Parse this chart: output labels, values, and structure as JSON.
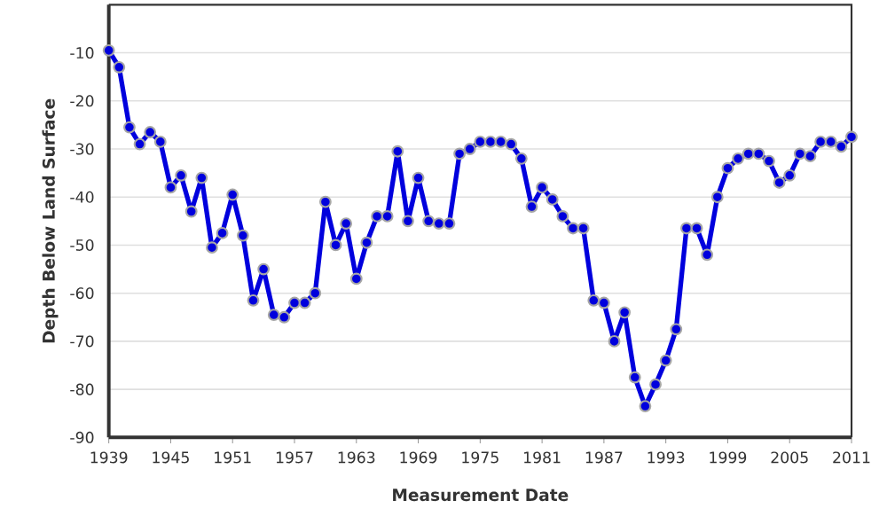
{
  "chart_data": {
    "type": "line",
    "xlabel": "Measurement Date",
    "ylabel": "Depth Below Land Surface",
    "x": [
      1939,
      1940,
      1941,
      1942,
      1943,
      1944,
      1945,
      1946,
      1947,
      1948,
      1949,
      1950,
      1951,
      1952,
      1953,
      1954,
      1955,
      1956,
      1957,
      1958,
      1959,
      1960,
      1961,
      1962,
      1963,
      1964,
      1965,
      1966,
      1967,
      1968,
      1969,
      1970,
      1971,
      1972,
      1973,
      1974,
      1975,
      1976,
      1977,
      1978,
      1979,
      1980,
      1981,
      1982,
      1983,
      1984,
      1985,
      1986,
      1987,
      1988,
      1989,
      1990,
      1991,
      1992,
      1993,
      1994,
      1995,
      1996,
      1997,
      1998,
      1999,
      2000,
      2001,
      2002,
      2003,
      2004,
      2005,
      2006,
      2007,
      2008,
      2009,
      2010,
      2011
    ],
    "series": [
      {
        "color": "#0000dd",
        "values": [
          -9.5,
          -13,
          -25.5,
          -29,
          -26.5,
          -28.5,
          -38,
          -35.5,
          -43,
          -36,
          -50.5,
          -47.5,
          -39.5,
          -48,
          -61.5,
          -55,
          -64.5,
          -65,
          -62,
          -62,
          -60,
          -41,
          -50,
          -45.5,
          -57,
          -49.5,
          -44,
          -44,
          -30.5,
          -45,
          -36,
          -45,
          -45.5,
          -45.5,
          -31,
          -30,
          -28.5,
          -28.5,
          -28.5,
          -29,
          -32,
          -42,
          -38,
          -40.5,
          -44,
          -46.5,
          -46.5,
          -61.5,
          -62,
          -70,
          -64,
          -77.5,
          -83.5,
          -79,
          -74,
          -67.5,
          -46.5,
          -46.5,
          -52,
          -40,
          -34,
          -32,
          -31,
          -31,
          -32.5,
          -37,
          -35.5,
          -31,
          -31.5,
          -28.5,
          -28.5,
          -29.5,
          -27.5
        ]
      }
    ],
    "xlim": [
      1939,
      2011
    ],
    "ylim": [
      -90,
      0
    ],
    "xticks": [
      1939,
      1945,
      1951,
      1957,
      1963,
      1969,
      1975,
      1981,
      1987,
      1993,
      1999,
      2005,
      2011
    ],
    "yticks": [
      -90,
      -80,
      -70,
      -60,
      -50,
      -40,
      -30,
      -20,
      -10
    ],
    "grid": "y",
    "marker": "circle",
    "line_style": "solid"
  }
}
